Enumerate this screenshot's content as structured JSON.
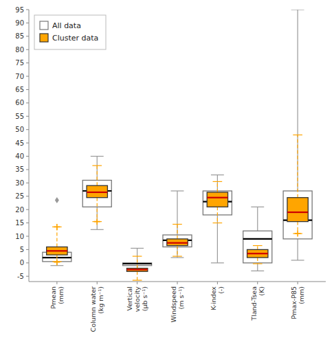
{
  "chart_data": {
    "type": "box",
    "categories": [
      "Pmean\n(mm)",
      "Column water\n(kg m⁻¹)",
      "Vertical\nvelocity\n(μb s⁻¹)",
      "Windspeed\n(m s⁻¹)",
      "K-index\n(-)",
      "Tland-Tsea\n(K)",
      "Pmax-P85\n(mm)"
    ],
    "series": [
      {
        "name": "All data",
        "color": "#ffffff",
        "line_style": "solid",
        "boxes": [
          {
            "q1": 0.5,
            "median": 2.0,
            "q3": 4.0,
            "whislo": -1.0,
            "whishi": 5.5,
            "outliers": [
              23.5
            ]
          },
          {
            "q1": 21.0,
            "median": 27.0,
            "q3": 31.0,
            "whislo": 12.5,
            "whishi": 40.0,
            "outliers": []
          },
          {
            "q1": -1.0,
            "median": -0.3,
            "q3": 0.0,
            "whislo": -3.0,
            "whishi": 5.5,
            "outliers": []
          },
          {
            "q1": 6.0,
            "median": 8.5,
            "q3": 10.5,
            "whislo": 2.0,
            "whishi": 27.0,
            "outliers": []
          },
          {
            "q1": 18.0,
            "median": 23.0,
            "q3": 27.0,
            "whislo": 0.0,
            "whishi": 33.0,
            "outliers": []
          },
          {
            "q1": 0.0,
            "median": 9.0,
            "q3": 12.0,
            "whislo": -3.0,
            "whishi": 21.0,
            "outliers": []
          },
          {
            "q1": 9.0,
            "median": 16.0,
            "q3": 27.0,
            "whislo": 1.0,
            "whishi": 95.0,
            "outliers": []
          }
        ]
      },
      {
        "name": "Cluster data",
        "color": "#FFA500",
        "line_style": "dashed",
        "boxes": [
          {
            "q1": 3.0,
            "median": 4.5,
            "q3": 6.0,
            "whislo": 0.5,
            "whishi": 13.5,
            "outliers": [
              13.5,
              0.3
            ]
          },
          {
            "q1": 24.5,
            "median": 26.5,
            "q3": 29.0,
            "whislo": 15.5,
            "whishi": 36.5,
            "outliers": [
              15.5
            ]
          },
          {
            "q1": -3.2,
            "median": -2.5,
            "q3": -2.0,
            "whislo": -6.5,
            "whishi": 2.5,
            "outliers": []
          },
          {
            "q1": 6.5,
            "median": 7.5,
            "q3": 9.0,
            "whislo": 2.5,
            "whishi": 14.5,
            "outliers": []
          },
          {
            "q1": 21.0,
            "median": 24.5,
            "q3": 26.5,
            "whislo": 15.0,
            "whishi": 30.5,
            "outliers": []
          },
          {
            "q1": 2.0,
            "median": 3.5,
            "q3": 5.0,
            "whislo": -0.3,
            "whishi": 6.5,
            "outliers": []
          },
          {
            "q1": 15.5,
            "median": 19.0,
            "q3": 24.5,
            "whislo": 11.0,
            "whishi": 48.0,
            "outliers": [
              11.0
            ]
          }
        ]
      }
    ],
    "ylim": [
      -7,
      95
    ],
    "yticks": [
      -5,
      0,
      5,
      10,
      15,
      20,
      25,
      30,
      35,
      40,
      45,
      50,
      55,
      60,
      65,
      70,
      75,
      80,
      85,
      90,
      95
    ],
    "grid": false,
    "legend": "upper left"
  }
}
